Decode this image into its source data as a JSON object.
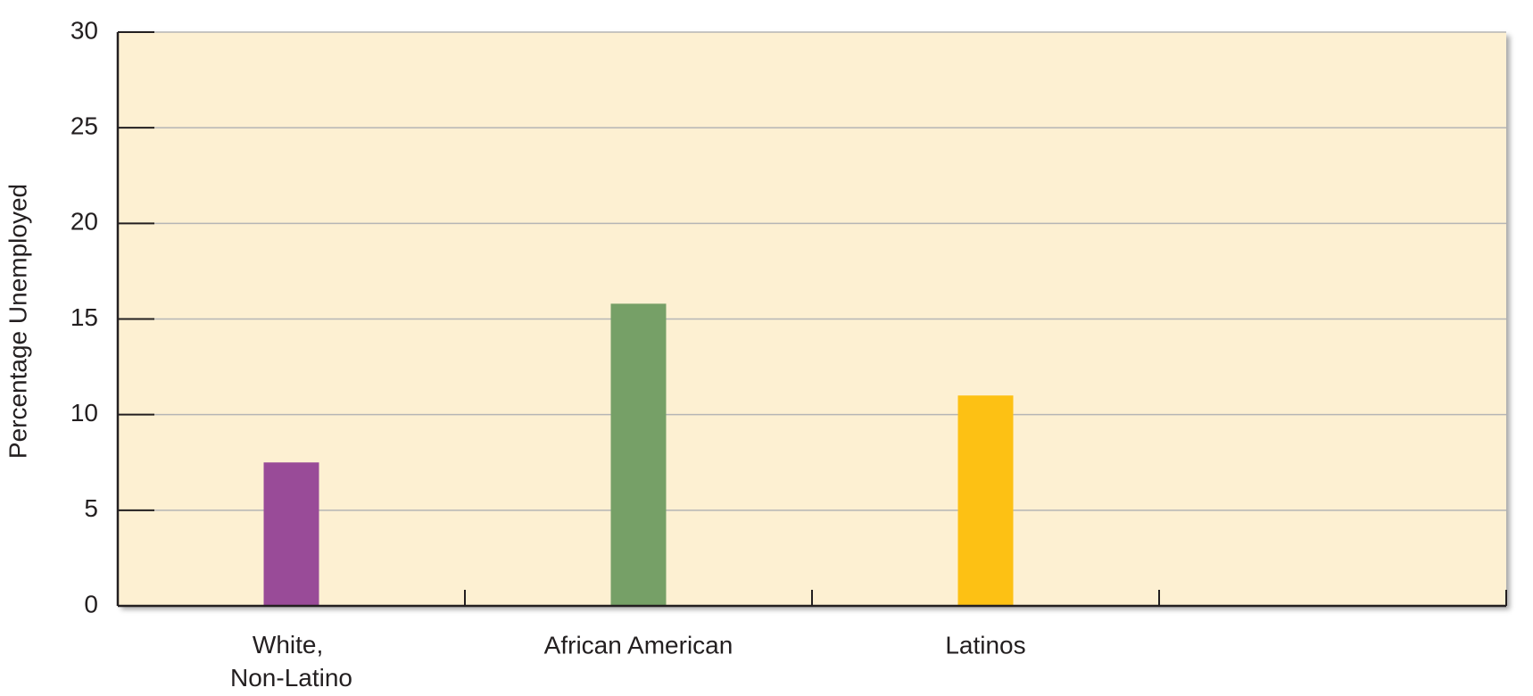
{
  "chart_data": {
    "type": "bar",
    "y_label": "Percentage Unemployed",
    "categories": [
      "White, Non-Latino",
      "African American",
      "Latinos",
      null
    ],
    "values": [
      7.5,
      15.8,
      11,
      null
    ],
    "colors": [
      "#994b98",
      "#76a067",
      "#fdc114",
      null
    ],
    "ylim": [
      0,
      30
    ],
    "yticks": [
      0,
      5,
      10,
      15,
      20,
      25,
      30
    ],
    "grid": true
  }
}
